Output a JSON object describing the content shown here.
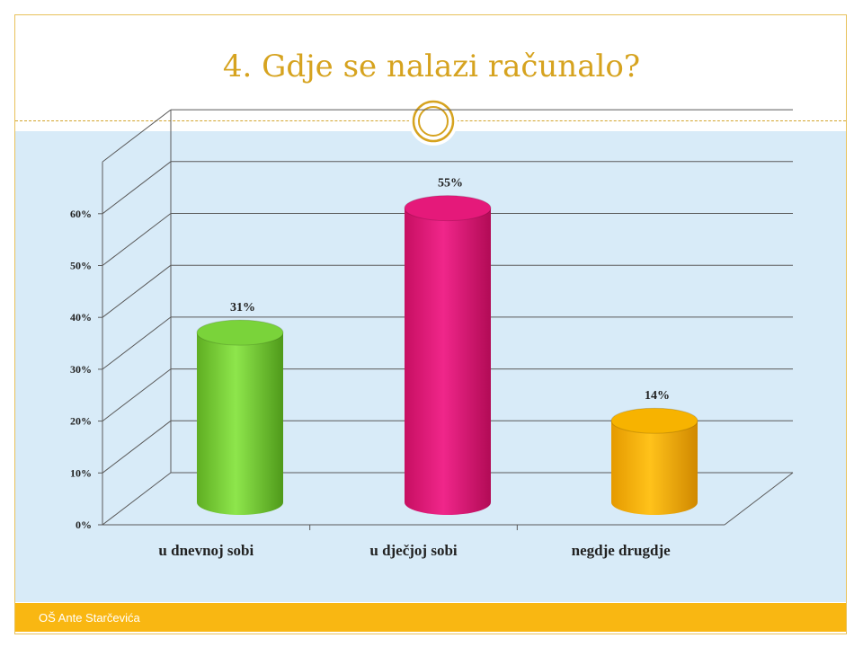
{
  "slide": {
    "title": "4. Gdje se nalazi računalo?",
    "footer": "OŠ Ante Starčevića"
  },
  "colors": {
    "accent": "#d6a31f",
    "footer_bar": "#f9b712",
    "chart_background": "#d8ebf8"
  },
  "chart_data": {
    "type": "bar",
    "style": "3d-cylinder",
    "categories": [
      "u dnevnoj sobi",
      "u dječjoj sobi",
      "negdje drugdje"
    ],
    "values": [
      31,
      55,
      14
    ],
    "value_labels": [
      "31%",
      "55%",
      "14%"
    ],
    "bar_colors": [
      "#7ad33a",
      "#e5197a",
      "#f7b300"
    ],
    "y_ticks": [
      "0%",
      "10%",
      "20%",
      "30%",
      "40%",
      "50%",
      "60%"
    ],
    "ylim": [
      0,
      70
    ],
    "grid": true,
    "legend": "none"
  }
}
